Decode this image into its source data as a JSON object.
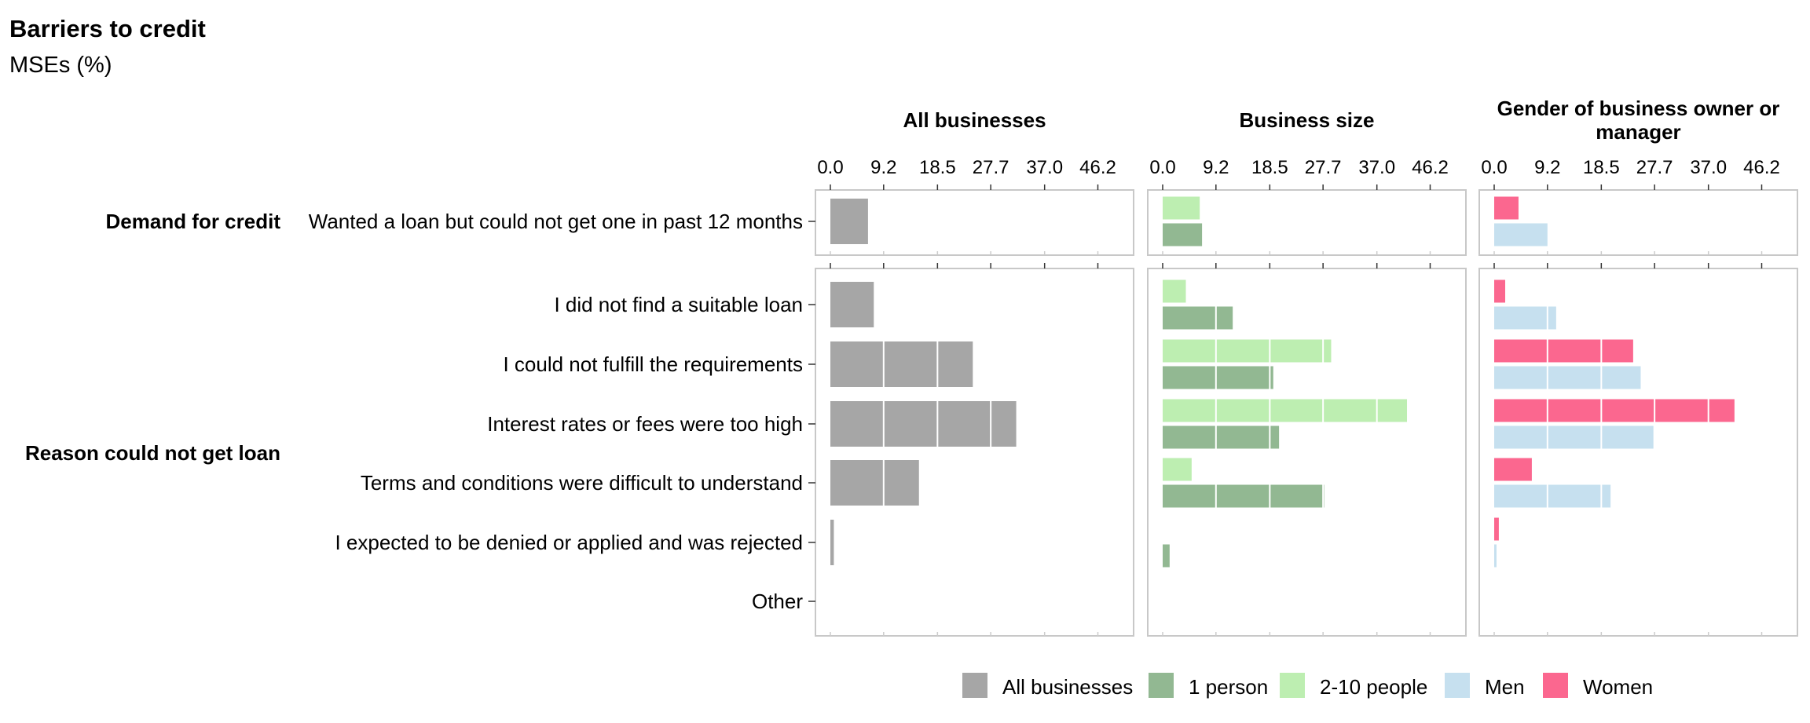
{
  "chart_data": {
    "type": "bar",
    "title": "Barriers to credit",
    "subtitle": "MSEs (%)",
    "xlim": [
      0,
      50.5
    ],
    "x_ticks": [
      "0.0",
      "9.2",
      "18.5",
      "27.7",
      "37.0",
      "46.2"
    ],
    "x_tick_values": [
      0.0,
      9.2,
      18.5,
      27.7,
      37.0,
      46.2
    ],
    "grid": "minimal, white gridlines over bars",
    "legend_position": "bottom",
    "groups": [
      {
        "label": "Demand for credit",
        "rows": [
          "Wanted a loan but could not get one in past 12 months"
        ]
      },
      {
        "label": "Reason could not get loan",
        "rows": [
          "I did not find a suitable loan",
          "I could not fulfill the requirements",
          "Interest rates or fees were too high",
          "Terms and conditions were difficult to understand",
          "I expected to be denied or applied and was rejected",
          "Other"
        ]
      }
    ],
    "panels": [
      {
        "title": "All businesses",
        "series": [
          {
            "name": "All businesses",
            "color": "#a6a6a6",
            "values": [
              [
                6.5
              ],
              [
                7.5,
                24.6,
                32.1,
                15.3,
                0.6,
                0.0
              ]
            ]
          }
        ]
      },
      {
        "title": "Business size",
        "series": [
          {
            "name": "2-10 people",
            "color": "#bdeeb1",
            "values": [
              [
                6.4
              ],
              [
                4.0,
                29.1,
                42.2,
                5.0,
                0.0,
                0.0
              ]
            ]
          },
          {
            "name": "1 person",
            "color": "#92b892",
            "values": [
              [
                6.8
              ],
              [
                12.1,
                19.1,
                20.1,
                27.9,
                1.2,
                0.0
              ]
            ]
          }
        ]
      },
      {
        "title": "Gender of business owner or manager",
        "series": [
          {
            "name": "Women",
            "color": "#fb678f",
            "values": [
              [
                4.2
              ],
              [
                1.9,
                24.0,
                41.5,
                6.5,
                0.8,
                0.0
              ]
            ]
          },
          {
            "name": "Men",
            "color": "#c6e0ef",
            "values": [
              [
                9.2
              ],
              [
                10.7,
                25.3,
                27.5,
                20.1,
                0.4,
                0.0
              ]
            ]
          }
        ]
      }
    ],
    "legend": [
      {
        "name": "All businesses",
        "color": "#a6a6a6"
      },
      {
        "name": "1 person",
        "color": "#92b892"
      },
      {
        "name": "2-10 people",
        "color": "#bdeeb1"
      },
      {
        "name": "Men",
        "color": "#c6e0ef"
      },
      {
        "name": "Women",
        "color": "#fb678f"
      }
    ]
  }
}
